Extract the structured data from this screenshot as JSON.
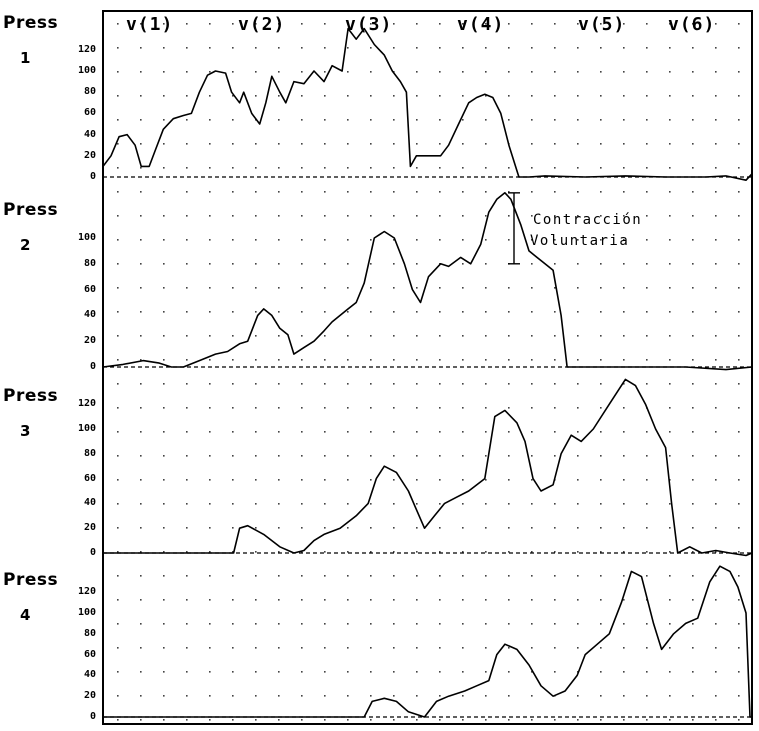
{
  "chart_data": {
    "type": "line",
    "title": "",
    "xlabel": "",
    "ylabel": "",
    "grid": true,
    "x_markers": [
      "v(1)",
      "v(2)",
      "v(3)",
      "v(4)",
      "v(5)",
      "v(6)"
    ],
    "y_ticks": [
      "120",
      "100",
      "80",
      "60",
      "40",
      "20",
      "0"
    ],
    "ylim": [
      0,
      140
    ],
    "annotation": {
      "line1": "Contracción",
      "line2": "Voluntaria",
      "panel": 2,
      "y_range": [
        80,
        135
      ]
    },
    "panels": [
      {
        "name": "Press",
        "number": "1",
        "points": [
          [
            0,
            10
          ],
          [
            0.04,
            20
          ],
          [
            0.08,
            38
          ],
          [
            0.12,
            40
          ],
          [
            0.16,
            30
          ],
          [
            0.19,
            10
          ],
          [
            0.23,
            10
          ],
          [
            0.26,
            25
          ],
          [
            0.3,
            45
          ],
          [
            0.35,
            55
          ],
          [
            0.4,
            58
          ],
          [
            0.44,
            60
          ],
          [
            0.48,
            80
          ],
          [
            0.52,
            96
          ],
          [
            0.56,
            100
          ],
          [
            0.61,
            98
          ],
          [
            0.64,
            80
          ],
          [
            0.68,
            70
          ],
          [
            0.7,
            80
          ],
          [
            0.74,
            60
          ],
          [
            0.78,
            50
          ],
          [
            0.81,
            70
          ],
          [
            0.84,
            95
          ],
          [
            0.88,
            80
          ],
          [
            0.91,
            70
          ],
          [
            0.95,
            90
          ],
          [
            1.0,
            88
          ],
          [
            1.05,
            100
          ],
          [
            1.1,
            90
          ],
          [
            1.14,
            105
          ],
          [
            1.19,
            100
          ],
          [
            1.22,
            140
          ],
          [
            1.26,
            130
          ],
          [
            1.3,
            140
          ],
          [
            1.35,
            125
          ],
          [
            1.4,
            115
          ],
          [
            1.44,
            100
          ],
          [
            1.48,
            90
          ],
          [
            1.51,
            80
          ],
          [
            1.53,
            10
          ],
          [
            1.56,
            20
          ],
          [
            1.6,
            20
          ],
          [
            1.68,
            20
          ],
          [
            1.72,
            30
          ],
          [
            1.77,
            50
          ],
          [
            1.82,
            70
          ],
          [
            1.86,
            75
          ],
          [
            1.9,
            78
          ],
          [
            1.94,
            75
          ],
          [
            1.98,
            60
          ],
          [
            2.02,
            30
          ],
          [
            2.07,
            0
          ],
          [
            2.12,
            0
          ],
          [
            2.2,
            1
          ],
          [
            2.4,
            0
          ],
          [
            2.6,
            1
          ],
          [
            2.8,
            0
          ],
          [
            3.0,
            0
          ],
          [
            3.1,
            1
          ],
          [
            3.2,
            -3
          ],
          [
            3.23,
            3
          ]
        ]
      },
      {
        "name": "Press",
        "number": "2",
        "points": [
          [
            0,
            0
          ],
          [
            0.1,
            2
          ],
          [
            0.2,
            5
          ],
          [
            0.28,
            3
          ],
          [
            0.34,
            0
          ],
          [
            0.4,
            0
          ],
          [
            0.48,
            5
          ],
          [
            0.56,
            10
          ],
          [
            0.62,
            12
          ],
          [
            0.68,
            18
          ],
          [
            0.72,
            20
          ],
          [
            0.77,
            40
          ],
          [
            0.8,
            45
          ],
          [
            0.84,
            40
          ],
          [
            0.88,
            30
          ],
          [
            0.92,
            25
          ],
          [
            0.95,
            10
          ],
          [
            1.0,
            15
          ],
          [
            1.05,
            20
          ],
          [
            1.1,
            28
          ],
          [
            1.14,
            35
          ],
          [
            1.18,
            40
          ],
          [
            1.22,
            45
          ],
          [
            1.26,
            50
          ],
          [
            1.3,
            65
          ],
          [
            1.35,
            100
          ],
          [
            1.4,
            105
          ],
          [
            1.45,
            100
          ],
          [
            1.5,
            80
          ],
          [
            1.54,
            60
          ],
          [
            1.58,
            50
          ],
          [
            1.62,
            70
          ],
          [
            1.68,
            80
          ],
          [
            1.72,
            78
          ],
          [
            1.78,
            85
          ],
          [
            1.83,
            80
          ],
          [
            1.88,
            95
          ],
          [
            1.92,
            120
          ],
          [
            1.96,
            130
          ],
          [
            2.0,
            135
          ],
          [
            2.03,
            130
          ],
          [
            2.08,
            110
          ],
          [
            2.12,
            90
          ],
          [
            2.16,
            85
          ],
          [
            2.2,
            80
          ],
          [
            2.24,
            75
          ],
          [
            2.28,
            40
          ],
          [
            2.31,
            0
          ],
          [
            2.35,
            0
          ],
          [
            2.6,
            0
          ],
          [
            2.9,
            0
          ],
          [
            3.1,
            -2
          ],
          [
            3.23,
            0
          ]
        ]
      },
      {
        "name": "Press",
        "number": "3",
        "points": [
          [
            0,
            0
          ],
          [
            0.3,
            0
          ],
          [
            0.55,
            0
          ],
          [
            0.65,
            0
          ],
          [
            0.68,
            20
          ],
          [
            0.72,
            22
          ],
          [
            0.8,
            15
          ],
          [
            0.88,
            5
          ],
          [
            0.95,
            0
          ],
          [
            1.0,
            2
          ],
          [
            1.05,
            10
          ],
          [
            1.1,
            15
          ],
          [
            1.18,
            20
          ],
          [
            1.26,
            30
          ],
          [
            1.32,
            40
          ],
          [
            1.36,
            60
          ],
          [
            1.4,
            70
          ],
          [
            1.46,
            65
          ],
          [
            1.52,
            50
          ],
          [
            1.56,
            35
          ],
          [
            1.6,
            20
          ],
          [
            1.65,
            30
          ],
          [
            1.7,
            40
          ],
          [
            1.76,
            45
          ],
          [
            1.82,
            50
          ],
          [
            1.9,
            60
          ],
          [
            1.95,
            110
          ],
          [
            2.0,
            115
          ],
          [
            2.06,
            105
          ],
          [
            2.1,
            90
          ],
          [
            2.14,
            60
          ],
          [
            2.18,
            50
          ],
          [
            2.24,
            55
          ],
          [
            2.28,
            80
          ],
          [
            2.33,
            95
          ],
          [
            2.38,
            90
          ],
          [
            2.44,
            100
          ],
          [
            2.52,
            120
          ],
          [
            2.6,
            140
          ],
          [
            2.65,
            135
          ],
          [
            2.7,
            120
          ],
          [
            2.75,
            100
          ],
          [
            2.8,
            85
          ],
          [
            2.83,
            40
          ],
          [
            2.86,
            0
          ],
          [
            2.92,
            5
          ],
          [
            2.98,
            0
          ],
          [
            3.05,
            2
          ],
          [
            3.12,
            0
          ],
          [
            3.2,
            -2
          ],
          [
            3.23,
            0
          ]
        ]
      },
      {
        "name": "Press",
        "number": "4",
        "points": [
          [
            0,
            0
          ],
          [
            0.3,
            0
          ],
          [
            0.6,
            0
          ],
          [
            0.9,
            0
          ],
          [
            1.15,
            0
          ],
          [
            1.2,
            0
          ],
          [
            1.3,
            0
          ],
          [
            1.34,
            15
          ],
          [
            1.4,
            18
          ],
          [
            1.46,
            15
          ],
          [
            1.52,
            5
          ],
          [
            1.6,
            0
          ],
          [
            1.66,
            15
          ],
          [
            1.72,
            20
          ],
          [
            1.8,
            25
          ],
          [
            1.86,
            30
          ],
          [
            1.92,
            35
          ],
          [
            1.96,
            60
          ],
          [
            2.0,
            70
          ],
          [
            2.06,
            65
          ],
          [
            2.12,
            50
          ],
          [
            2.18,
            30
          ],
          [
            2.24,
            20
          ],
          [
            2.3,
            25
          ],
          [
            2.36,
            40
          ],
          [
            2.4,
            60
          ],
          [
            2.46,
            70
          ],
          [
            2.52,
            80
          ],
          [
            2.58,
            110
          ],
          [
            2.63,
            140
          ],
          [
            2.68,
            135
          ],
          [
            2.74,
            90
          ],
          [
            2.78,
            65
          ],
          [
            2.84,
            80
          ],
          [
            2.9,
            90
          ],
          [
            2.96,
            95
          ],
          [
            3.02,
            130
          ],
          [
            3.07,
            145
          ],
          [
            3.12,
            140
          ],
          [
            3.16,
            125
          ],
          [
            3.2,
            100
          ],
          [
            3.22,
            0
          ],
          [
            3.23,
            0
          ]
        ]
      }
    ]
  }
}
